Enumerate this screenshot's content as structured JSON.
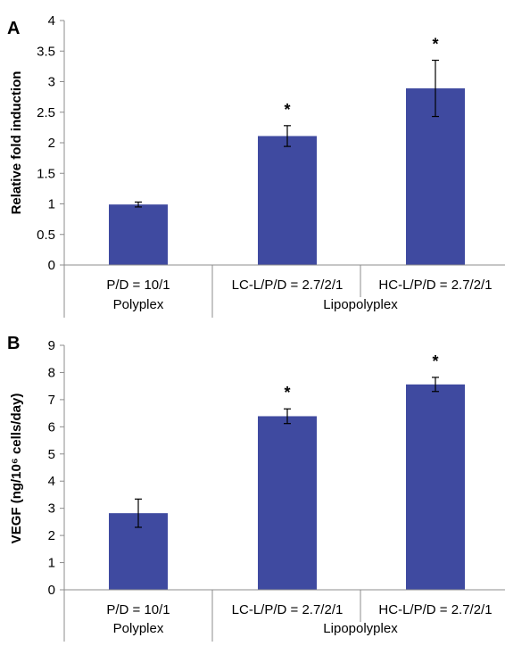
{
  "colors": {
    "bar": "#3f4aa0",
    "axis": "#8c8c8c"
  },
  "chart_data": [
    {
      "panel": "A",
      "type": "bar",
      "ylabel": "Relative fold induction",
      "ylim": [
        0,
        4
      ],
      "yticks": [
        "0",
        "0.5",
        "1",
        "1.5",
        "2",
        "2.5",
        "3",
        "3.5",
        "4"
      ],
      "categories": [
        "P/D = 10/1",
        "LC-L/P/D = 2.7/2/1",
        "HC-L/P/D = 2.7/2/1"
      ],
      "groups": [
        {
          "label": "Polyplex",
          "categories": [
            0
          ]
        },
        {
          "label": "Lipopolyplex",
          "categories": [
            1,
            2
          ]
        }
      ],
      "values": [
        0.99,
        2.11,
        2.89
      ],
      "errors": [
        0.04,
        0.17,
        0.46
      ],
      "significance": [
        "",
        "*",
        "*"
      ],
      "grid": false,
      "legend": "none"
    },
    {
      "panel": "B",
      "type": "bar",
      "ylabel": "VEGF (ng/10⁶ cells/day)",
      "ylim": [
        0,
        9
      ],
      "yticks": [
        "0",
        "1",
        "2",
        "3",
        "4",
        "5",
        "6",
        "7",
        "8",
        "9"
      ],
      "categories": [
        "P/D = 10/1",
        "LC-L/P/D = 2.7/2/1",
        "HC-L/P/D = 2.7/2/1"
      ],
      "groups": [
        {
          "label": "Polyplex",
          "categories": [
            0
          ]
        },
        {
          "label": "Lipopolyplex",
          "categories": [
            1,
            2
          ]
        }
      ],
      "values": [
        2.82,
        6.39,
        7.56
      ],
      "errors": [
        0.52,
        0.27,
        0.26
      ],
      "significance": [
        "",
        "*",
        "*"
      ],
      "grid": false,
      "legend": "none"
    }
  ]
}
